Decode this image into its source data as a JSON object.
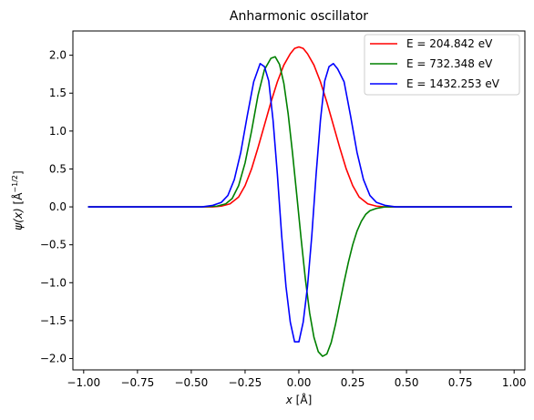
{
  "chart_data": {
    "type": "line",
    "title": "Anharmonic oscillator",
    "xlabel_var": "x",
    "xlabel_unit": "[Å]",
    "ylabel_var": "ψ(x)",
    "ylabel_unit_open": "[Å",
    "ylabel_unit_exp": "−1/2",
    "ylabel_unit_close": "]",
    "xlim": [
      -1.05,
      1.05
    ],
    "ylim": [
      -2.15,
      2.32
    ],
    "xticks": [
      -1.0,
      -0.75,
      -0.5,
      -0.25,
      0.0,
      0.25,
      0.5,
      0.75,
      1.0
    ],
    "xtick_labels": [
      "−1.00",
      "−0.75",
      "−0.50",
      "−0.25",
      "0.00",
      "0.25",
      "0.50",
      "0.75",
      "1.00"
    ],
    "yticks": [
      -2.0,
      -1.5,
      -1.0,
      -0.5,
      0.0,
      0.5,
      1.0,
      1.5,
      2.0
    ],
    "ytick_labels": [
      "−2.0",
      "−1.5",
      "−1.0",
      "−0.5",
      "0.0",
      "0.5",
      "1.0",
      "1.5",
      "2.0"
    ],
    "grid": false,
    "legend_position": "top-right",
    "x_range": [
      -0.98,
      0.99
    ],
    "series": [
      {
        "name": "E = 204.842 eV",
        "color": "#ff0000",
        "points": [
          [
            -0.98,
            0
          ],
          [
            -0.4,
            0
          ],
          [
            -0.36,
            0.01
          ],
          [
            -0.32,
            0.04
          ],
          [
            -0.28,
            0.13
          ],
          [
            -0.25,
            0.28
          ],
          [
            -0.22,
            0.5
          ],
          [
            -0.19,
            0.78
          ],
          [
            -0.16,
            1.08
          ],
          [
            -0.13,
            1.38
          ],
          [
            -0.1,
            1.65
          ],
          [
            -0.07,
            1.87
          ],
          [
            -0.04,
            2.02
          ],
          [
            -0.02,
            2.09
          ],
          [
            0.0,
            2.11
          ],
          [
            0.02,
            2.09
          ],
          [
            0.04,
            2.02
          ],
          [
            0.07,
            1.87
          ],
          [
            0.1,
            1.65
          ],
          [
            0.13,
            1.38
          ],
          [
            0.16,
            1.08
          ],
          [
            0.19,
            0.78
          ],
          [
            0.22,
            0.5
          ],
          [
            0.25,
            0.28
          ],
          [
            0.28,
            0.13
          ],
          [
            0.32,
            0.04
          ],
          [
            0.36,
            0.01
          ],
          [
            0.4,
            0
          ],
          [
            0.99,
            0
          ]
        ]
      },
      {
        "name": "E = 732.348 eV",
        "color": "#008000",
        "points": [
          [
            -0.98,
            0
          ],
          [
            -0.45,
            0
          ],
          [
            -0.38,
            0.01
          ],
          [
            -0.34,
            0.04
          ],
          [
            -0.31,
            0.11
          ],
          [
            -0.28,
            0.28
          ],
          [
            -0.25,
            0.58
          ],
          [
            -0.22,
            1.0
          ],
          [
            -0.19,
            1.47
          ],
          [
            -0.16,
            1.81
          ],
          [
            -0.13,
            1.96
          ],
          [
            -0.11,
            1.98
          ],
          [
            -0.09,
            1.88
          ],
          [
            -0.07,
            1.63
          ],
          [
            -0.05,
            1.23
          ],
          [
            -0.03,
            0.72
          ],
          [
            -0.01,
            0.16
          ],
          [
            0.01,
            -0.41
          ],
          [
            0.03,
            -0.95
          ],
          [
            0.05,
            -1.4
          ],
          [
            0.07,
            -1.72
          ],
          [
            0.09,
            -1.91
          ],
          [
            0.11,
            -1.97
          ],
          [
            0.13,
            -1.94
          ],
          [
            0.15,
            -1.79
          ],
          [
            0.17,
            -1.55
          ],
          [
            0.19,
            -1.27
          ],
          [
            0.21,
            -0.99
          ],
          [
            0.23,
            -0.73
          ],
          [
            0.25,
            -0.5
          ],
          [
            0.27,
            -0.32
          ],
          [
            0.29,
            -0.19
          ],
          [
            0.31,
            -0.1
          ],
          [
            0.33,
            -0.05
          ],
          [
            0.36,
            -0.02
          ],
          [
            0.4,
            0
          ],
          [
            0.99,
            0
          ]
        ]
      },
      {
        "name": "E = 1432.253 eV",
        "color": "#0000ff",
        "points": [
          [
            -0.98,
            0
          ],
          [
            -0.45,
            0
          ],
          [
            -0.4,
            0.02
          ],
          [
            -0.36,
            0.06
          ],
          [
            -0.33,
            0.15
          ],
          [
            -0.3,
            0.36
          ],
          [
            -0.27,
            0.72
          ],
          [
            -0.24,
            1.2
          ],
          [
            -0.21,
            1.65
          ],
          [
            -0.18,
            1.89
          ],
          [
            -0.16,
            1.85
          ],
          [
            -0.14,
            1.66
          ],
          [
            -0.12,
            1.14
          ],
          [
            -0.1,
            0.43
          ],
          [
            -0.08,
            -0.38
          ],
          [
            -0.06,
            -1.05
          ],
          [
            -0.04,
            -1.52
          ],
          [
            -0.02,
            -1.78
          ],
          [
            0.0,
            -1.78
          ],
          [
            0.02,
            -1.52
          ],
          [
            0.04,
            -1.05
          ],
          [
            0.06,
            -0.38
          ],
          [
            0.08,
            0.43
          ],
          [
            0.1,
            1.14
          ],
          [
            0.12,
            1.66
          ],
          [
            0.14,
            1.85
          ],
          [
            0.16,
            1.89
          ],
          [
            0.18,
            1.82
          ],
          [
            0.21,
            1.65
          ],
          [
            0.24,
            1.2
          ],
          [
            0.27,
            0.72
          ],
          [
            0.3,
            0.36
          ],
          [
            0.33,
            0.15
          ],
          [
            0.36,
            0.06
          ],
          [
            0.4,
            0.02
          ],
          [
            0.45,
            0
          ],
          [
            0.99,
            0
          ]
        ]
      }
    ]
  }
}
